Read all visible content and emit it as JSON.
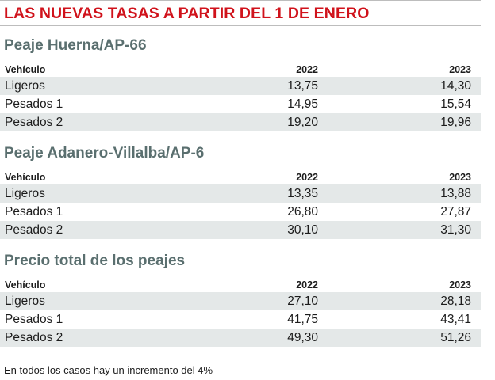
{
  "title": "LAS NUEVAS TASAS A PARTIR DEL 1 DE ENERO",
  "columns": {
    "vehicle": "Vehículo",
    "y1": "2022",
    "y2": "2023"
  },
  "sections": [
    {
      "title": "Peaje Huerna/AP-66",
      "rows": [
        {
          "vehicle": "Ligeros",
          "y1": "13,75",
          "y2": "14,30"
        },
        {
          "vehicle": "Pesados 1",
          "y1": "14,95",
          "y2": "15,54"
        },
        {
          "vehicle": "Pesados 2",
          "y1": "19,20",
          "y2": "19,96"
        }
      ]
    },
    {
      "title": "Peaje Adanero-Villalba/AP-6",
      "rows": [
        {
          "vehicle": "Ligeros",
          "y1": "13,35",
          "y2": "13,88"
        },
        {
          "vehicle": "Pesados 1",
          "y1": "26,80",
          "y2": "27,87"
        },
        {
          "vehicle": "Pesados 2",
          "y1": "30,10",
          "y2": "31,30"
        }
      ]
    },
    {
      "title": "Precio total de los peajes",
      "rows": [
        {
          "vehicle": "Ligeros",
          "y1": "27,10",
          "y2": "28,18"
        },
        {
          "vehicle": "Pesados 1",
          "y1": "41,75",
          "y2": "43,41"
        },
        {
          "vehicle": "Pesados 2",
          "y1": "49,30",
          "y2": "51,26"
        }
      ]
    }
  ],
  "footnote": "En todos los casos hay un incremento del 4%",
  "colors": {
    "title": "#d0121b",
    "section_title": "#5a6f6f",
    "row_shade": "#e4e8e8"
  }
}
